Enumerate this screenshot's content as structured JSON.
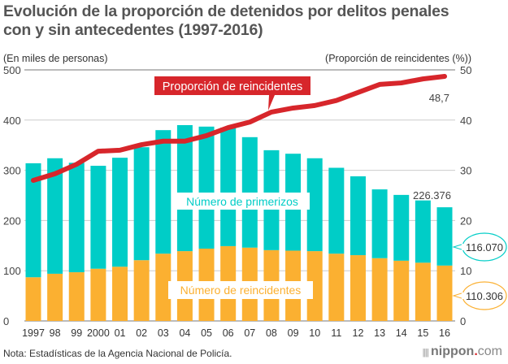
{
  "title_line1": "Evolución de la proporción de detenidos por delitos penales",
  "title_line2": "con y sin antecedentes (1997-2016)",
  "note": "Nota: Estadísticas de la Agencia Nacional de Policía.",
  "logo": {
    "mark": "||||",
    "name": "nippon",
    "dot": ".",
    "tld": "com"
  },
  "colors": {
    "primerizos": "#00cdc7",
    "reincidentes": "#fbb031",
    "line": "#d7262b",
    "grid": "#cccccc"
  },
  "chart_data": {
    "type": "bar",
    "stacked": true,
    "title": "Evolución de la proporción de detenidos por delitos penales con y sin antecedentes (1997-2016)",
    "ylabel_left": "(En miles de personas)",
    "ylabel_right": "(Proporción de reincidentes (%))",
    "ylim_left": [
      0,
      500
    ],
    "ylim_right": [
      0,
      50
    ],
    "yticks_left": [
      "0",
      "100",
      "200",
      "300",
      "400",
      "500"
    ],
    "yticks_right": [
      "0",
      "10",
      "20",
      "30",
      "40",
      "50"
    ],
    "grid": true,
    "categories": [
      "1997",
      "98",
      "99",
      "2000",
      "01",
      "02",
      "03",
      "04",
      "05",
      "06",
      "07",
      "08",
      "09",
      "10",
      "11",
      "12",
      "13",
      "14",
      "15",
      "16"
    ],
    "series": [
      {
        "name": "Número de reincidentes",
        "axis": "left",
        "type": "bar",
        "values": [
          87,
          94,
          97,
          104,
          108,
          121,
          134,
          139,
          144,
          149,
          146,
          141,
          140,
          139,
          134,
          131,
          125,
          120,
          116,
          110.306
        ]
      },
      {
        "name": "Número de primerizos",
        "axis": "left",
        "type": "bar",
        "values": [
          227,
          230,
          218,
          205,
          217,
          225,
          246,
          251,
          243,
          236,
          220,
          199,
          193,
          185,
          171,
          157,
          137,
          131,
          124,
          116.07
        ]
      },
      {
        "name": "Proporción de reincidentes",
        "axis": "right",
        "type": "line",
        "values": [
          28.0,
          29.3,
          31.2,
          33.8,
          34.0,
          35.1,
          35.8,
          35.8,
          36.9,
          38.5,
          39.6,
          41.6,
          42.4,
          42.9,
          43.9,
          45.5,
          47.1,
          47.4,
          48.2,
          48.7
        ]
      }
    ],
    "annotations": {
      "total_last": "226.376",
      "primerizos_last": "116.070",
      "reincidentes_last": "110.306",
      "ratio_last": "48,7"
    },
    "legend_labels": {
      "line": "Proporción de reincidentes",
      "primerizos": "Número de primerizos",
      "reincidentes": "Número de reincidentes"
    }
  }
}
